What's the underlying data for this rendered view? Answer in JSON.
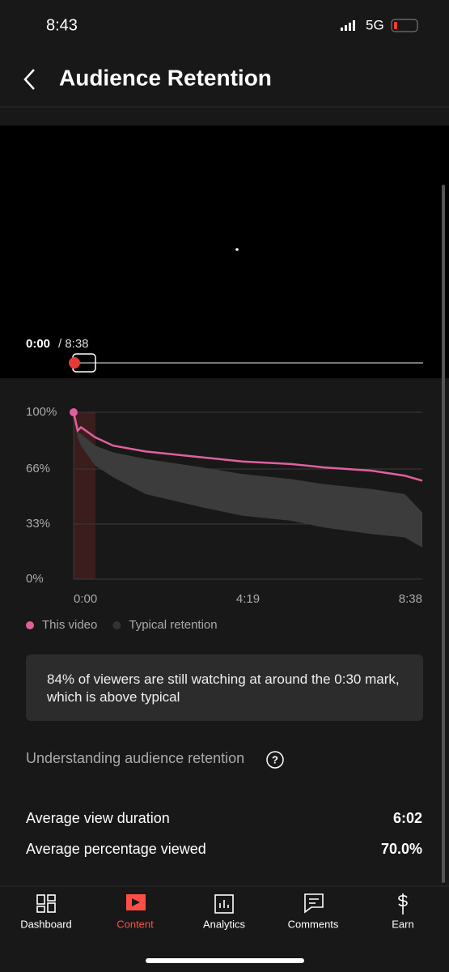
{
  "status_bar": {
    "time": "8:43",
    "network": "5G"
  },
  "header": {
    "title": "Audience Retention"
  },
  "player": {
    "current_time": "0:00",
    "duration": "/ 8:38"
  },
  "chart_data": {
    "type": "line",
    "x": [
      0,
      6,
      11,
      32,
      59,
      107,
      191,
      251,
      323,
      371,
      443,
      492,
      518
    ],
    "series": [
      {
        "name": "This video",
        "color": "#e0609f",
        "values": [
          100,
          89,
          91,
          85,
          80,
          76.5,
          73,
          70.5,
          69,
          67,
          65,
          62,
          59
        ]
      },
      {
        "name": "Typical retention",
        "color": "#3c3c3c",
        "type": "band",
        "upper": [
          100,
          88,
          87,
          80,
          76,
          72,
          67,
          63,
          60,
          57,
          54,
          51,
          40
        ],
        "lower": [
          100,
          85,
          80,
          68,
          61,
          51,
          43,
          38,
          35,
          31,
          27,
          25,
          19
        ]
      }
    ],
    "xlim": [
      0,
      518
    ],
    "xticks": [
      {
        "value": 0,
        "label": "0:00"
      },
      {
        "value": 259,
        "label": "4:19"
      },
      {
        "value": 518,
        "label": "8:38"
      }
    ],
    "ylim": [
      0,
      100
    ],
    "yticks": [
      {
        "value": 0,
        "label": "0%"
      },
      {
        "value": 33,
        "label": "33%"
      },
      {
        "value": 66,
        "label": "66%"
      },
      {
        "value": 100,
        "label": "100%"
      }
    ],
    "grid": true
  },
  "insight": "84% of viewers are still watching at around the 0:30 mark, which is above typical",
  "help_link": "Understanding audience retention",
  "stats": [
    {
      "label": "Average view duration",
      "value": "6:02"
    },
    {
      "label": "Average percentage viewed",
      "value": "70.0%"
    }
  ],
  "nav": [
    {
      "label": "Dashboard"
    },
    {
      "label": "Content"
    },
    {
      "label": "Analytics"
    },
    {
      "label": "Comments"
    },
    {
      "label": "Earn"
    }
  ]
}
